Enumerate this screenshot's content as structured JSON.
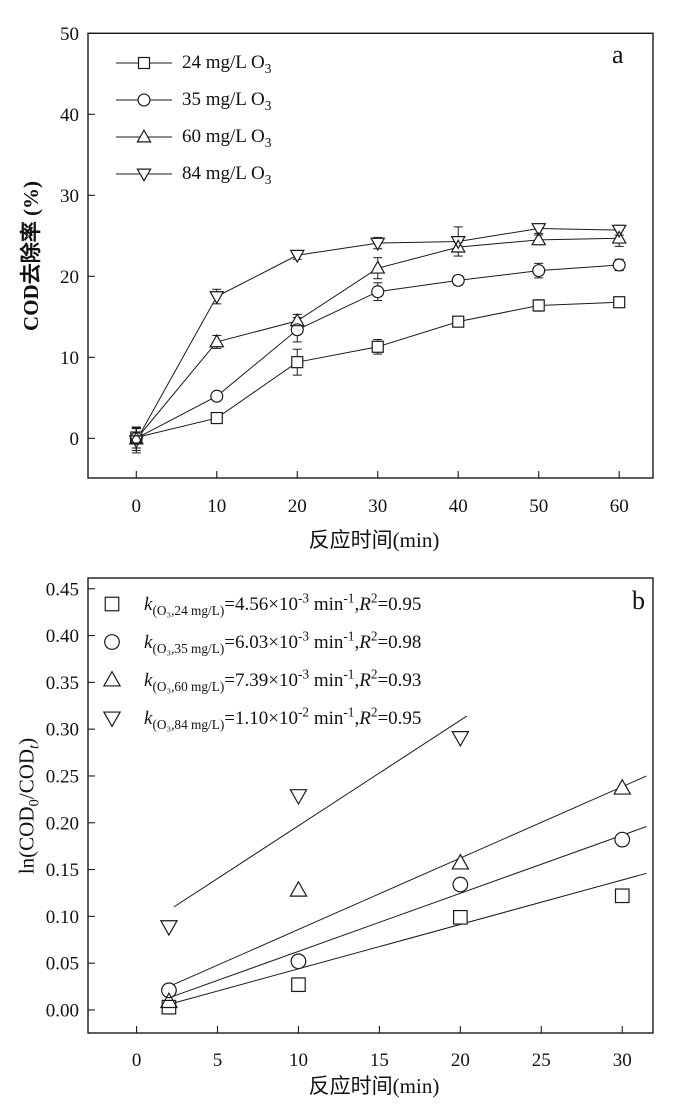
{
  "page": {
    "background": "#ffffff",
    "ink_color": "#1a1a1a"
  },
  "chart_data": [
    {
      "id": "panel_a",
      "type": "line",
      "panel_label": "a",
      "title": "",
      "xlabel": "反应时间(min)",
      "ylabel": "COD去除率 (%)",
      "xlim": [
        -6,
        64.2
      ],
      "ylim": [
        -4.9,
        50
      ],
      "grid": false,
      "legend_position": "top-left",
      "x_ticks": [
        0,
        10,
        20,
        30,
        40,
        50,
        60
      ],
      "x_tick_labels": [
        "0",
        "10",
        "20",
        "30",
        "40",
        "50",
        "60"
      ],
      "y_ticks": [
        0,
        10,
        20,
        30,
        40,
        50
      ],
      "y_tick_labels": [
        "0",
        "10",
        "20",
        "30",
        "40",
        "50"
      ],
      "x": [
        0,
        10,
        20,
        30,
        40,
        50,
        60
      ],
      "series": [
        {
          "name": "24 mg/L O₃",
          "marker": "square",
          "legend_rich": [
            {
              "text": "24 mg/L O",
              "style": "n"
            },
            {
              "text": "3",
              "style": "sub"
            }
          ],
          "values": [
            0.1,
            2.5,
            9.4,
            11.3,
            14.4,
            16.4,
            16.8
          ],
          "errors": [
            1.3,
            0.6,
            1.6,
            0.9,
            0.5,
            0.7,
            0.4
          ]
        },
        {
          "name": "35 mg/L O₃",
          "marker": "circle",
          "legend_rich": [
            {
              "text": "35 mg/L O",
              "style": "n"
            },
            {
              "text": "3",
              "style": "sub"
            }
          ],
          "values": [
            0,
            5.2,
            13.4,
            18.1,
            19.5,
            20.7,
            21.4
          ],
          "errors": [
            1.2,
            0.5,
            1.5,
            1.1,
            0.6,
            0.9,
            0.7
          ]
        },
        {
          "name": "60 mg/L O₃",
          "marker": "triangle-up",
          "legend_rich": [
            {
              "text": "60 mg/L O",
              "style": "n"
            },
            {
              "text": "3",
              "style": "sub"
            }
          ],
          "values": [
            -0.1,
            11.9,
            14.5,
            21.0,
            23.6,
            24.5,
            24.7
          ],
          "errors": [
            1.4,
            0.8,
            0.8,
            1.3,
            0.6,
            0.6,
            1.0
          ]
        },
        {
          "name": "84 mg/L O₃",
          "marker": "triangle-down",
          "legend_rich": [
            {
              "text": "84 mg/L O",
              "style": "n"
            },
            {
              "text": "3",
              "style": "sub"
            }
          ],
          "values": [
            -0.3,
            17.5,
            22.6,
            24.1,
            24.3,
            25.9,
            25.7
          ],
          "errors": [
            1.5,
            0.9,
            0.5,
            0.7,
            1.8,
            0.6,
            0.6
          ]
        }
      ]
    },
    {
      "id": "panel_b",
      "type": "scatter",
      "panel_label": "b",
      "title": "",
      "xlabel": "反应时间(min)",
      "ylabel": "ln(COD0/CODt)",
      "ylabel_rich": [
        {
          "text": "ln(COD",
          "style": "n"
        },
        {
          "text": "0",
          "style": "sub"
        },
        {
          "text": "/COD",
          "style": "n"
        },
        {
          "text": "t",
          "style": "subi"
        },
        {
          "text": ")",
          "style": "n"
        }
      ],
      "xlim": [
        -3,
        31.9
      ],
      "ylim": [
        -0.0246,
        0.4615
      ],
      "grid": false,
      "legend_position": "top-left",
      "x_ticks": [
        0,
        5,
        10,
        15,
        20,
        25,
        30
      ],
      "x_tick_labels": [
        "0",
        "5",
        "10",
        "15",
        "20",
        "25",
        "30"
      ],
      "y_ticks": [
        0,
        0.05,
        0.1,
        0.15,
        0.2,
        0.25,
        0.3,
        0.35,
        0.4,
        0.45
      ],
      "y_tick_labels": [
        "0.00",
        "0.05",
        "0.10",
        "0.15",
        "0.20",
        "0.25",
        "0.30",
        "0.35",
        "0.40",
        "0.45"
      ],
      "series": [
        {
          "name": "24 mg/L O₃",
          "marker": "square",
          "k_text": "k(O₃,24 mg/L)=4.56×10⁻³ min⁻¹",
          "R2": "0.95",
          "legend_rich": [
            {
              "text": "k",
              "style": "i"
            },
            {
              "text": "(O₃,24 mg/L)",
              "style": "sub"
            },
            {
              "text": "=4.56×10",
              "style": "n"
            },
            {
              "text": "-3",
              "style": "sup"
            },
            {
              "text": " min",
              "style": "n"
            },
            {
              "text": "-1",
              "style": "sup"
            },
            {
              "text": ",",
              "style": "n"
            },
            {
              "text": "R",
              "style": "i"
            },
            {
              "text": "2",
              "style": "sup"
            },
            {
              "text": "=0.95",
              "style": "n"
            }
          ],
          "x": [
            2,
            10,
            20,
            30
          ],
          "y": [
            0.003,
            0.027,
            0.099,
            0.122
          ],
          "fit_line": {
            "x": [
              2,
              31.5
            ],
            "y": [
              0.006,
              0.146
            ]
          }
        },
        {
          "name": "35 mg/L O₃",
          "marker": "circle",
          "k_text": "k(O₃,35 mg/L)=6.03×10⁻³ min⁻¹",
          "R2": "0.98",
          "legend_rich": [
            {
              "text": "k",
              "style": "i"
            },
            {
              "text": "(O₃,35 mg/L)",
              "style": "sub"
            },
            {
              "text": "=6.03×10",
              "style": "n"
            },
            {
              "text": "-3",
              "style": "sup"
            },
            {
              "text": " min",
              "style": "n"
            },
            {
              "text": "-1",
              "style": "sup"
            },
            {
              "text": ",",
              "style": "n"
            },
            {
              "text": "R",
              "style": "i"
            },
            {
              "text": "2",
              "style": "sup"
            },
            {
              "text": "=0.98",
              "style": "n"
            }
          ],
          "x": [
            2,
            10,
            20,
            30
          ],
          "y": [
            0.021,
            0.052,
            0.134,
            0.182
          ],
          "fit_line": {
            "x": [
              2,
              31.5
            ],
            "y": [
              0.013,
              0.196
            ]
          }
        },
        {
          "name": "60 mg/L O₃",
          "marker": "triangle-up",
          "k_text": "k(O₃,60 mg/L)=7.39×10⁻³ min⁻¹",
          "R2": "0.93",
          "legend_rich": [
            {
              "text": "k",
              "style": "i"
            },
            {
              "text": "(O₃,60 mg/L)",
              "style": "sub"
            },
            {
              "text": "=7.39×10",
              "style": "n"
            },
            {
              "text": "-3",
              "style": "sup"
            },
            {
              "text": " min",
              "style": "n"
            },
            {
              "text": "-1",
              "style": "sup"
            },
            {
              "text": ",",
              "style": "n"
            },
            {
              "text": "R",
              "style": "i"
            },
            {
              "text": "2",
              "style": "sup"
            },
            {
              "text": "=0.93",
              "style": "n"
            }
          ],
          "x": [
            2,
            10,
            20,
            30
          ],
          "y": [
            0.009,
            0.128,
            0.157,
            0.237
          ],
          "fit_line": {
            "x": [
              2,
              31.5
            ],
            "y": [
              0.025,
              0.25
            ]
          }
        },
        {
          "name": "84 mg/L O₃",
          "marker": "triangle-down",
          "k_text": "k(O₃,84 mg/L)=1.10×10⁻² min⁻¹",
          "R2": "0.95",
          "legend_rich": [
            {
              "text": "k",
              "style": "i"
            },
            {
              "text": "(O₃,84 mg/L)",
              "style": "sub"
            },
            {
              "text": "=1.10×10",
              "style": "n"
            },
            {
              "text": "-2",
              "style": "sup"
            },
            {
              "text": " min",
              "style": "n"
            },
            {
              "text": "-1",
              "style": "sup"
            },
            {
              "text": ",",
              "style": "n"
            },
            {
              "text": "R",
              "style": "i"
            },
            {
              "text": "2",
              "style": "sup"
            },
            {
              "text": "=0.95",
              "style": "n"
            }
          ],
          "x": [
            2,
            10,
            20
          ],
          "y": [
            0.089,
            0.229,
            0.291
          ],
          "fit_line": {
            "x": [
              2.3,
              20.4
            ],
            "y": [
              0.11,
              0.314
            ]
          }
        }
      ]
    }
  ]
}
